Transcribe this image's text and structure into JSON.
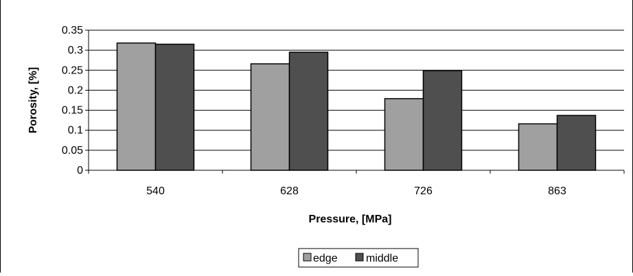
{
  "chart_data": {
    "type": "bar",
    "categories": [
      "540",
      "628",
      "726",
      "863"
    ],
    "series": [
      {
        "name": "edge",
        "values": [
          0.318,
          0.266,
          0.179,
          0.116
        ],
        "color": "#a0a0a0"
      },
      {
        "name": "middle",
        "values": [
          0.315,
          0.295,
          0.249,
          0.137
        ],
        "color": "#4f4f4f"
      }
    ],
    "xlabel": "Pressure, [MPa]",
    "ylabel": "Porosity, [%]",
    "ylim": [
      0,
      0.35
    ],
    "yticks": [
      "0",
      "0.05",
      "0.1",
      "0.15",
      "0.2",
      "0.25",
      "0.3",
      "0.35"
    ],
    "grid": true,
    "legend_position": "bottom"
  }
}
